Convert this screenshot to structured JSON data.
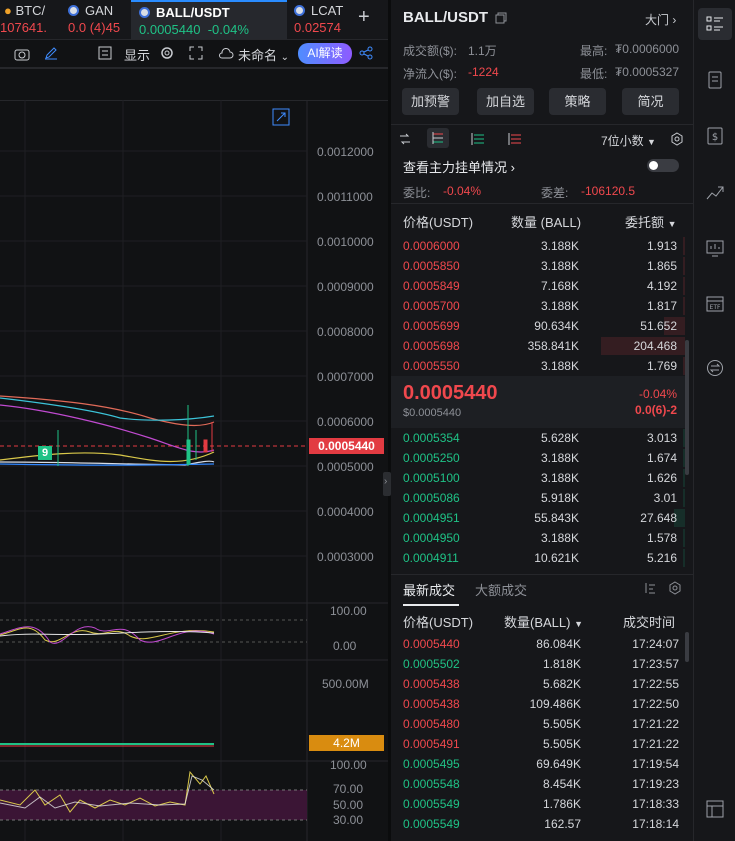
{
  "tabs": [
    {
      "name": "BTC/",
      "value": "107641."
    },
    {
      "name": "GAN",
      "value": "0.0",
      "change": "(4)45"
    },
    {
      "name": "BALL/USDT",
      "value": "0.0005440",
      "change": "-0.04%"
    },
    {
      "name": "LCAT",
      "value": "0.02574"
    }
  ],
  "toolbar": {
    "display_label": "显示",
    "unnamed_label": "未命名",
    "ai_label": "AI解读"
  },
  "price_axis": [
    "0.0012000",
    "0.0011000",
    "0.0010000",
    "0.0009000",
    "0.0008000",
    "0.0007000",
    "0.0006000",
    "0.0005000",
    "0.0004000",
    "0.0003000"
  ],
  "price_tag": "0.0005440",
  "candle_badge": "9",
  "osc_axis": [
    "100.00",
    "0.00"
  ],
  "vol_axis": "500.00M",
  "vol_tag": "4.2M",
  "rsi_axis": [
    "100.00",
    "70.00",
    "50.00",
    "30.00"
  ],
  "panel": {
    "symbol": "BALL/USDT",
    "market_link": "大门",
    "turnover_label": "成交额($):",
    "turnover_value": "1.1万",
    "netflow_label": "净流入($):",
    "netflow_value": "-1224",
    "high_label": "最高:",
    "high_value": "₮0.0006000",
    "low_label": "最低:",
    "low_value": "₮0.0005327",
    "buttons": [
      "加预警",
      "加自选",
      "策略",
      "简况"
    ],
    "decimals": "7位小数",
    "main_orders": "查看主力挂单情况",
    "ratio_label": "委比:",
    "ratio_value": "-0.04%",
    "diff_label": "委差:",
    "diff_value": "-106120.5",
    "ob_headers": {
      "price": "价格(USDT)",
      "qty": "数量 (BALL)",
      "total": "委托额"
    },
    "asks": [
      {
        "price": "0.0006000",
        "qty": "3.188K",
        "total": "1.913"
      },
      {
        "price": "0.0005850",
        "qty": "3.188K",
        "total": "1.865"
      },
      {
        "price": "0.0005849",
        "qty": "7.168K",
        "total": "4.192"
      },
      {
        "price": "0.0005700",
        "qty": "3.188K",
        "total": "1.817"
      },
      {
        "price": "0.0005699",
        "qty": "90.634K",
        "total": "51.652"
      },
      {
        "price": "0.0005698",
        "qty": "358.841K",
        "total": "204.468"
      },
      {
        "price": "0.0005550",
        "qty": "3.188K",
        "total": "1.769"
      }
    ],
    "last_price": "0.0005440",
    "last_price_usd": "$0.0005440",
    "last_change": "-0.04%",
    "last_change_abs": "0.0(6)-2",
    "bids": [
      {
        "price": "0.0005354",
        "qty": "5.628K",
        "total": "3.013"
      },
      {
        "price": "0.0005250",
        "qty": "3.188K",
        "total": "1.674"
      },
      {
        "price": "0.0005100",
        "qty": "3.188K",
        "total": "1.626"
      },
      {
        "price": "0.0005086",
        "qty": "5.918K",
        "total": "3.01"
      },
      {
        "price": "0.0004951",
        "qty": "55.843K",
        "total": "27.648"
      },
      {
        "price": "0.0004950",
        "qty": "3.188K",
        "total": "1.578"
      },
      {
        "price": "0.0004911",
        "qty": "10.621K",
        "total": "5.216"
      }
    ],
    "trades_tab": "最新成交",
    "big_trades_tab": "大额成交",
    "tr_headers": {
      "price": "价格(USDT)",
      "qty": "数量(BALL)",
      "time": "成交时间"
    },
    "trades": [
      {
        "price": "0.0005440",
        "qty": "86.084K",
        "time": "17:24:07",
        "side": "sell"
      },
      {
        "price": "0.0005502",
        "qty": "1.818K",
        "time": "17:23:57",
        "side": "buy"
      },
      {
        "price": "0.0005438",
        "qty": "5.682K",
        "time": "17:22:55",
        "side": "sell"
      },
      {
        "price": "0.0005438",
        "qty": "109.486K",
        "time": "17:22:50",
        "side": "sell"
      },
      {
        "price": "0.0005480",
        "qty": "5.505K",
        "time": "17:21:22",
        "side": "sell"
      },
      {
        "price": "0.0005491",
        "qty": "5.505K",
        "time": "17:21:22",
        "side": "sell"
      },
      {
        "price": "0.0005495",
        "qty": "69.649K",
        "time": "17:19:54",
        "side": "buy"
      },
      {
        "price": "0.0005548",
        "qty": "8.454K",
        "time": "17:19:23",
        "side": "buy"
      },
      {
        "price": "0.0005549",
        "qty": "1.786K",
        "time": "17:18:33",
        "side": "buy"
      },
      {
        "price": "0.0005549",
        "qty": "162.57",
        "time": "17:18:14",
        "side": "buy"
      }
    ]
  },
  "colors": {
    "up": "#1fc286",
    "down": "#f0484d",
    "accent": "#2a8cff",
    "vol_tag": "#d98c10"
  },
  "rail_icons": [
    "list-icon",
    "document-icon",
    "dollar-icon",
    "chart-up-icon",
    "monitor-icon",
    "etf-icon",
    "swap-icon",
    "layout-icon"
  ]
}
